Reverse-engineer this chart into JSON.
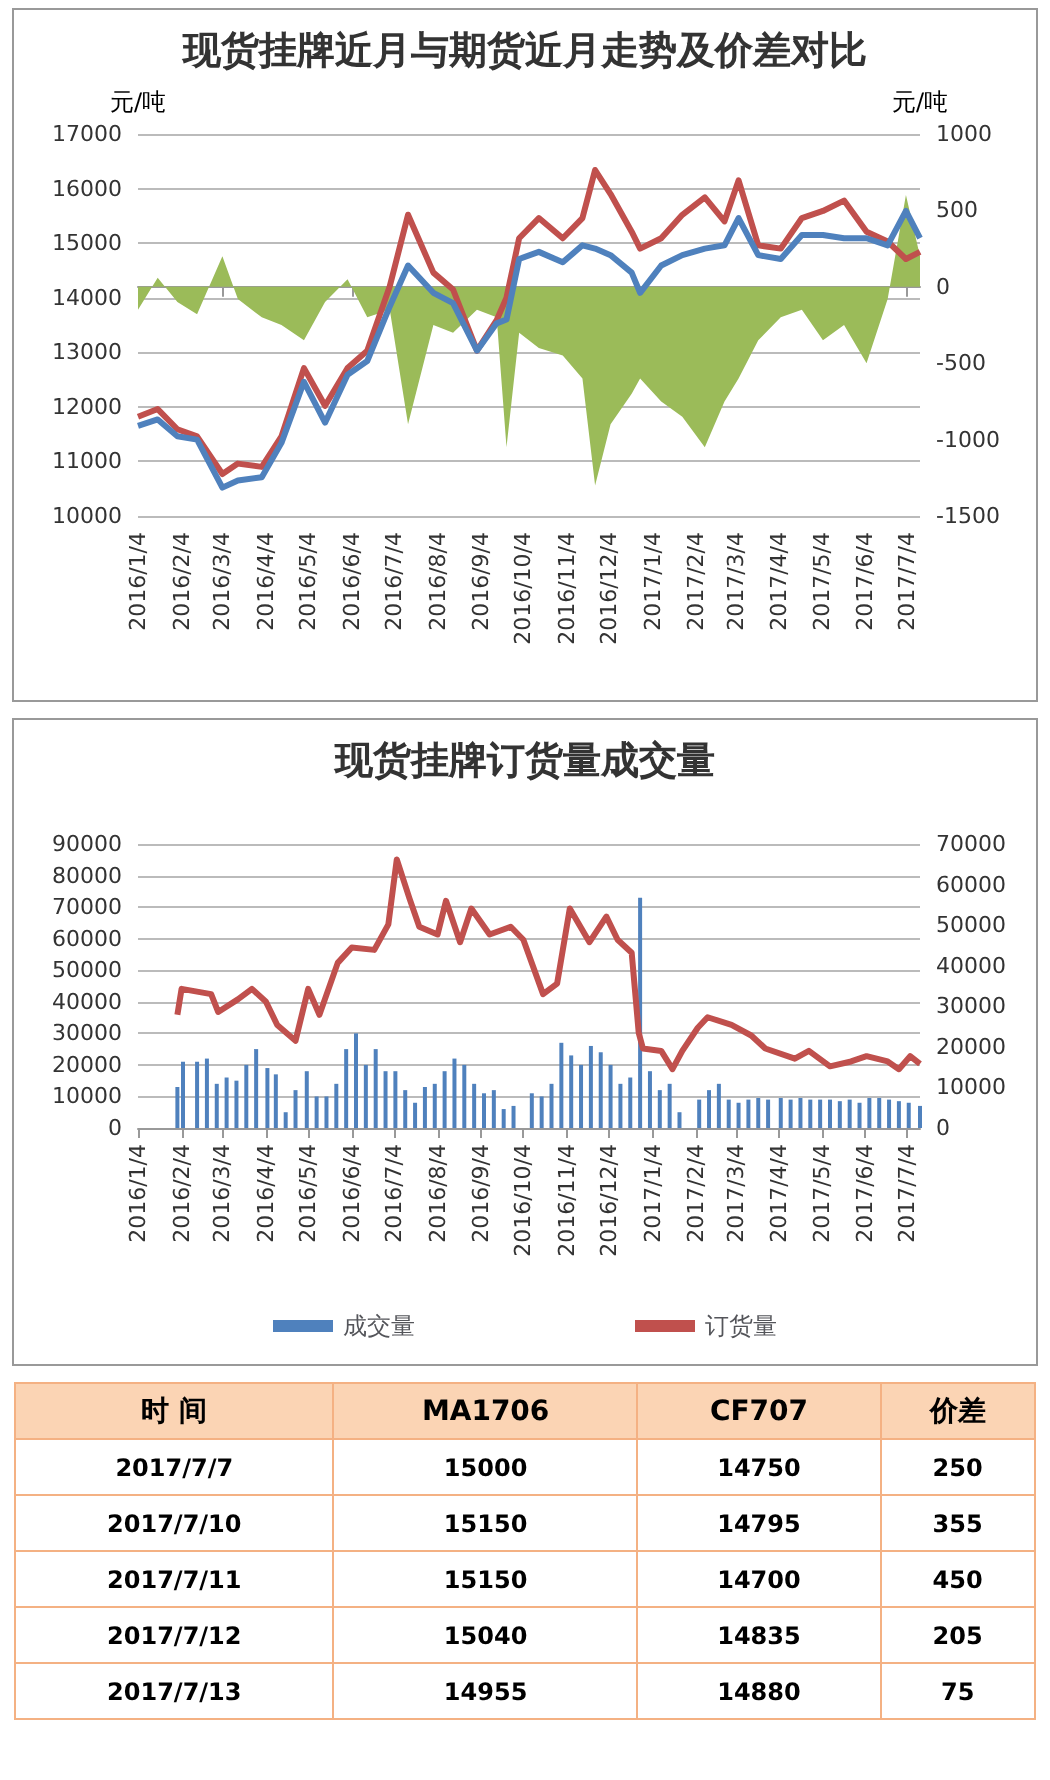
{
  "chart_data": [
    {
      "type": "line",
      "title": "现货挂牌近月与期货近月走势及价差对比",
      "ylabel": "元/吨",
      "y2label": "元/吨",
      "x": [
        "2016-01-04",
        "2016-01-18",
        "2016-02-01",
        "2016-02-15",
        "2016-03-04",
        "2016-03-15",
        "2016-04-01",
        "2016-04-15",
        "2016-05-01",
        "2016-05-16",
        "2016-06-01",
        "2016-06-15",
        "2016-07-01",
        "2016-07-14",
        "2016-08-01",
        "2016-08-15",
        "2016-09-01",
        "2016-09-15",
        "2016-09-22",
        "2016-10-01",
        "2016-10-15",
        "2016-11-01",
        "2016-11-15",
        "2016-11-24",
        "2016-12-05",
        "2016-12-20",
        "2016-12-26",
        "2017-01-10",
        "2017-01-25",
        "2017-02-10",
        "2017-02-24",
        "2017-03-06",
        "2017-03-20",
        "2017-04-05",
        "2017-04-20",
        "2017-05-05",
        "2017-05-20",
        "2017-06-05",
        "2017-06-20",
        "2017-07-03",
        "2017-07-13"
      ],
      "series": [
        {
          "color": "#c0504d",
          "values": [
            11820,
            11960,
            11590,
            11460,
            10770,
            10960,
            10900,
            11460,
            12710,
            12020,
            12710,
            13030,
            14210,
            15520,
            14460,
            14150,
            13030,
            13590,
            14000,
            15090,
            15460,
            15090,
            15460,
            16340,
            15900,
            15210,
            14900,
            15090,
            15520,
            15840,
            15400,
            16150,
            14960,
            14900,
            15460,
            15590,
            15780,
            15210,
            15030,
            14710,
            14840
          ]
        },
        {
          "color": "#4f81bd",
          "values": [
            11650,
            11770,
            11460,
            11400,
            10520,
            10650,
            10710,
            11340,
            12460,
            11710,
            12590,
            12840,
            13840,
            14590,
            14090,
            13900,
            13030,
            13530,
            13600,
            14710,
            14840,
            14650,
            14960,
            14900,
            14780,
            14460,
            14090,
            14590,
            14780,
            14900,
            14960,
            15460,
            14780,
            14710,
            15150,
            15150,
            15090,
            15090,
            14960,
            15590,
            15090
          ]
        },
        {
          "type": "area",
          "axis": "y2",
          "color": "#9bbb59",
          "values": [
            -150,
            60,
            -100,
            -180,
            200,
            -80,
            -200,
            -250,
            -350,
            -100,
            50,
            -200,
            -150,
            -900,
            -250,
            -300,
            -150,
            -200,
            -1050,
            -300,
            -400,
            -450,
            -600,
            -1300,
            -900,
            -700,
            -600,
            -750,
            -850,
            -1050,
            -750,
            -600,
            -350,
            -200,
            -150,
            -350,
            -250,
            -500,
            -80,
            600,
            200
          ]
        }
      ],
      "xlim": [
        "2016-01-04",
        "2017-07-13"
      ],
      "xticks": [
        {
          "value": "2016-01-04",
          "label": "2016/1/4"
        },
        {
          "value": "2016-02-04",
          "label": "2016/2/4"
        },
        {
          "value": "2016-03-04",
          "label": "2016/3/4"
        },
        {
          "value": "2016-04-04",
          "label": "2016/4/4"
        },
        {
          "value": "2016-05-04",
          "label": "2016/5/4"
        },
        {
          "value": "2016-06-04",
          "label": "2016/6/4"
        },
        {
          "value": "2016-07-04",
          "label": "2016/7/4"
        },
        {
          "value": "2016-08-04",
          "label": "2016/8/4"
        },
        {
          "value": "2016-09-04",
          "label": "2016/9/4"
        },
        {
          "value": "2016-10-04",
          "label": "2016/10/4"
        },
        {
          "value": "2016-11-04",
          "label": "2016/11/4"
        },
        {
          "value": "2016-12-04",
          "label": "2016/12/4"
        },
        {
          "value": "2017-01-04",
          "label": "2017/1/4"
        },
        {
          "value": "2017-02-04",
          "label": "2017/2/4"
        },
        {
          "value": "2017-03-04",
          "label": "2017/3/4"
        },
        {
          "value": "2017-04-04",
          "label": "2017/4/4"
        },
        {
          "value": "2017-05-04",
          "label": "2017/5/4"
        },
        {
          "value": "2017-06-04",
          "label": "2017/6/4"
        },
        {
          "value": "2017-07-04",
          "label": "2017/7/4"
        }
      ],
      "ylim": [
        10000,
        17000
      ],
      "yticks": [
        10000,
        11000,
        12000,
        13000,
        14000,
        15000,
        16000,
        17000
      ],
      "y2lim": [
        -1500,
        1000
      ],
      "y2ticks": [
        -1500,
        -1000,
        -500,
        0,
        500,
        1000
      ],
      "grid": "y",
      "marker": "none"
    },
    {
      "type": "bar",
      "title": "现货挂牌订货量成交量",
      "x": [
        "2016-02-01",
        "2016-02-05",
        "2016-02-15",
        "2016-02-22",
        "2016-02-29",
        "2016-03-07",
        "2016-03-14",
        "2016-03-21",
        "2016-03-28",
        "2016-04-05",
        "2016-04-11",
        "2016-04-18",
        "2016-04-25",
        "2016-05-03",
        "2016-05-10",
        "2016-05-17",
        "2016-05-24",
        "2016-05-31",
        "2016-06-07",
        "2016-06-14",
        "2016-06-21",
        "2016-06-28",
        "2016-07-05",
        "2016-07-12",
        "2016-07-19",
        "2016-07-26",
        "2016-08-02",
        "2016-08-09",
        "2016-08-16",
        "2016-08-23",
        "2016-08-30",
        "2016-09-06",
        "2016-09-13",
        "2016-09-20",
        "2016-09-27",
        "2016-10-10",
        "2016-10-17",
        "2016-10-24",
        "2016-10-31",
        "2016-11-07",
        "2016-11-14",
        "2016-11-21",
        "2016-11-28",
        "2016-12-05",
        "2016-12-12",
        "2016-12-19",
        "2016-12-26",
        "2017-01-02",
        "2017-01-09",
        "2017-01-16",
        "2017-01-23",
        "2017-02-06",
        "2017-02-13",
        "2017-02-20",
        "2017-02-27",
        "2017-03-06",
        "2017-03-13",
        "2017-03-20",
        "2017-03-27",
        "2017-04-05",
        "2017-04-12",
        "2017-04-19",
        "2017-04-26",
        "2017-05-03",
        "2017-05-10",
        "2017-05-17",
        "2017-05-24",
        "2017-05-31",
        "2017-06-07",
        "2017-06-14",
        "2017-06-21",
        "2017-06-28",
        "2017-07-05",
        "2017-07-13"
      ],
      "series": [
        {
          "name": "成交量",
          "color": "#4f81bd",
          "values": [
            13000,
            21000,
            21000,
            22000,
            14000,
            16000,
            15000,
            20000,
            25000,
            19000,
            17000,
            5000,
            12000,
            18000,
            10000,
            10000,
            14000,
            25000,
            30000,
            20000,
            25000,
            18000,
            18000,
            12000,
            8000,
            13000,
            14000,
            18000,
            22000,
            20000,
            14000,
            11000,
            12000,
            6000,
            7000,
            11000,
            10000,
            14000,
            27000,
            23000,
            20000,
            26000,
            24000,
            20000,
            14000,
            16000,
            73000,
            18000,
            12000,
            14000,
            5000,
            9000,
            12000,
            14000,
            9000,
            8000,
            9000,
            9500,
            9000,
            9500,
            9000,
            9500,
            9000,
            9000,
            9000,
            8500,
            9000,
            8000,
            9500,
            9500,
            9000,
            8500,
            8000,
            7000
          ]
        },
        {
          "name": "订货量",
          "type": "line",
          "axis": "y2",
          "color": "#c0504d",
          "x": [
            "2016-02-01",
            "2016-02-04",
            "2016-02-25",
            "2016-03-01",
            "2016-03-15",
            "2016-03-25",
            "2016-04-04",
            "2016-04-12",
            "2016-04-25",
            "2016-05-04",
            "2016-05-12",
            "2016-05-25",
            "2016-06-04",
            "2016-06-20",
            "2016-06-30",
            "2016-07-06",
            "2016-07-15",
            "2016-07-22",
            "2016-08-04",
            "2016-08-10",
            "2016-08-20",
            "2016-08-28",
            "2016-09-10",
            "2016-09-25",
            "2016-10-04",
            "2016-10-18",
            "2016-10-28",
            "2016-11-06",
            "2016-11-20",
            "2016-12-02",
            "2016-12-10",
            "2016-12-20",
            "2016-12-25",
            "2016-12-28",
            "2017-01-10",
            "2017-01-18",
            "2017-01-25",
            "2017-02-05",
            "2017-02-12",
            "2017-03-01",
            "2017-03-15",
            "2017-03-25",
            "2017-04-15",
            "2017-04-25",
            "2017-05-10",
            "2017-05-25",
            "2017-06-05",
            "2017-06-20",
            "2017-06-28",
            "2017-07-06",
            "2017-07-13"
          ],
          "values": [
            27900,
            34300,
            33000,
            28600,
            31700,
            34300,
            31100,
            25400,
            21500,
            34300,
            27900,
            40700,
            44500,
            43900,
            50200,
            66200,
            56600,
            49600,
            47700,
            56000,
            45800,
            54100,
            47700,
            49600,
            46400,
            33000,
            35600,
            54100,
            45800,
            52100,
            46400,
            43200,
            23500,
            19600,
            19000,
            14500,
            19000,
            24700,
            27300,
            25400,
            22800,
            19600,
            17100,
            19000,
            15200,
            16400,
            17700,
            16400,
            14500,
            17700,
            15800
          ]
        }
      ],
      "xlim": [
        "2016-01-04",
        "2017-07-13"
      ],
      "xticks": [
        {
          "value": "2016-01-04",
          "label": "2016/1/4"
        },
        {
          "value": "2016-02-04",
          "label": "2016/2/4"
        },
        {
          "value": "2016-03-04",
          "label": "2016/3/4"
        },
        {
          "value": "2016-04-04",
          "label": "2016/4/4"
        },
        {
          "value": "2016-05-04",
          "label": "2016/5/4"
        },
        {
          "value": "2016-06-04",
          "label": "2016/6/4"
        },
        {
          "value": "2016-07-04",
          "label": "2016/7/4"
        },
        {
          "value": "2016-08-04",
          "label": "2016/8/4"
        },
        {
          "value": "2016-09-04",
          "label": "2016/9/4"
        },
        {
          "value": "2016-10-04",
          "label": "2016/10/4"
        },
        {
          "value": "2016-11-04",
          "label": "2016/11/4"
        },
        {
          "value": "2016-12-04",
          "label": "2016/12/4"
        },
        {
          "value": "2017-01-04",
          "label": "2017/1/4"
        },
        {
          "value": "2017-02-04",
          "label": "2017/2/4"
        },
        {
          "value": "2017-03-04",
          "label": "2017/3/4"
        },
        {
          "value": "2017-04-04",
          "label": "2017/4/4"
        },
        {
          "value": "2017-05-04",
          "label": "2017/5/4"
        },
        {
          "value": "2017-06-04",
          "label": "2017/6/4"
        },
        {
          "value": "2017-07-04",
          "label": "2017/7/4"
        }
      ],
      "ylim": [
        0,
        90000
      ],
      "yticks": [
        0,
        10000,
        20000,
        30000,
        40000,
        50000,
        60000,
        70000,
        80000,
        90000
      ],
      "y2lim": [
        0,
        70000
      ],
      "y2ticks": [
        0,
        10000,
        20000,
        30000,
        40000,
        50000,
        60000,
        70000
      ],
      "grid": "y",
      "legend": "bottom",
      "marker": "none"
    },
    {
      "type": "other",
      "xlabel": "时 间",
      "categories": [
        "2017/7/7",
        "2017/7/10",
        "2017/7/11",
        "2017/7/12",
        "2017/7/13"
      ],
      "series": [
        {
          "name": "MA1706",
          "values": [
            15000,
            15150,
            15150,
            15040,
            14955
          ]
        },
        {
          "name": "CF707",
          "values": [
            14750,
            14795,
            14700,
            14835,
            14880
          ]
        },
        {
          "name": "价差",
          "values": [
            250,
            355,
            450,
            205,
            75
          ]
        }
      ],
      "data_labels": true
    }
  ]
}
